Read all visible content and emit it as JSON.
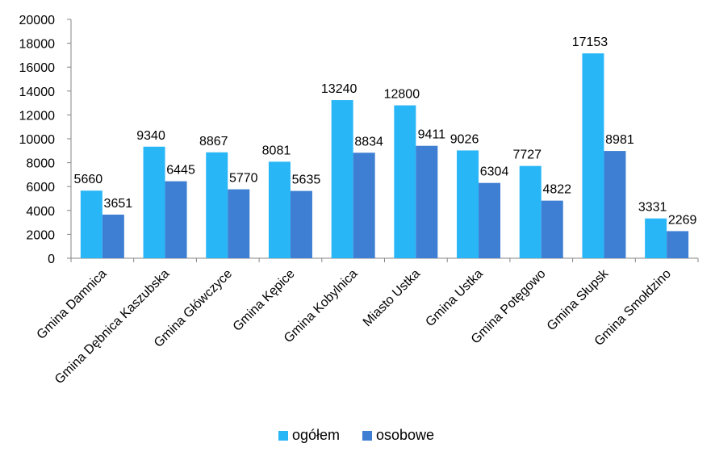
{
  "chart_data": {
    "type": "bar",
    "categories": [
      "Gmina Damnica",
      "Gmina Dębnica Kaszubska",
      "Gmina Główczyce",
      "Gmina Kępice",
      "Gmina Kobylnica",
      "Miasto Ustka",
      "Gmina Ustka",
      "Gmina Potęgowo",
      "Gmina Słupsk",
      "Gmina Smołdzino"
    ],
    "series": [
      {
        "name": "ogółem",
        "color": "#29B6F6",
        "values": [
          5660,
          9340,
          8867,
          8081,
          13240,
          12800,
          9026,
          7727,
          17153,
          3331
        ]
      },
      {
        "name": "osobowe",
        "color": "#3E7FD3",
        "values": [
          3651,
          6445,
          5770,
          5635,
          8834,
          9411,
          6304,
          4822,
          8981,
          2269
        ]
      }
    ],
    "ylim": [
      0,
      20000
    ],
    "yticks": [
      0,
      2000,
      4000,
      6000,
      8000,
      10000,
      12000,
      14000,
      16000,
      18000,
      20000
    ],
    "legend_position": "bottom",
    "grid": false
  }
}
